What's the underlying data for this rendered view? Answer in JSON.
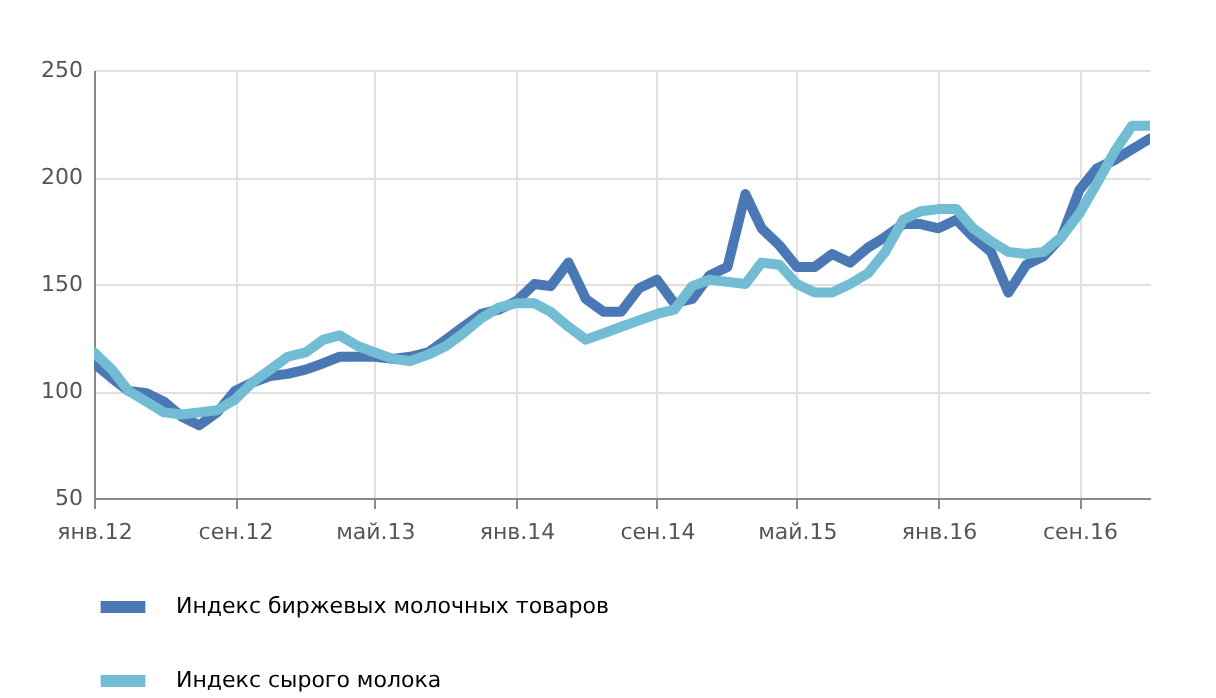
{
  "chart_data": {
    "type": "line",
    "x": [
      "2012-01",
      "2012-02",
      "2012-03",
      "2012-04",
      "2012-05",
      "2012-06",
      "2012-07",
      "2012-08",
      "2012-09",
      "2012-10",
      "2012-11",
      "2012-12",
      "2013-01",
      "2013-02",
      "2013-03",
      "2013-04",
      "2013-05",
      "2013-06",
      "2013-07",
      "2013-08",
      "2013-09",
      "2013-10",
      "2013-11",
      "2013-12",
      "2014-01",
      "2014-02",
      "2014-03",
      "2014-04",
      "2014-05",
      "2014-06",
      "2014-07",
      "2014-08",
      "2014-09",
      "2014-10",
      "2014-11",
      "2014-12",
      "2015-01",
      "2015-02",
      "2015-03",
      "2015-04",
      "2015-05",
      "2015-06",
      "2015-07",
      "2015-08",
      "2015-09",
      "2015-10",
      "2015-11",
      "2015-12",
      "2016-01",
      "2016-02",
      "2016-03",
      "2016-04",
      "2016-05",
      "2016-06",
      "2016-07",
      "2016-08",
      "2016-09",
      "2016-10",
      "2016-11",
      "2016-12",
      "2017-01"
    ],
    "series": [
      {
        "name": "Индекс биржевых молочных товаров",
        "color": "#4a78b5",
        "values": [
          113,
          106,
          100,
          99,
          95,
          88,
          84,
          90,
          100,
          104,
          107,
          108,
          110,
          113,
          116,
          116,
          116,
          115,
          116,
          118,
          124,
          130,
          136,
          138,
          142,
          150,
          149,
          160,
          143,
          137,
          137,
          148,
          152,
          141,
          143,
          154,
          158,
          192,
          176,
          168,
          158,
          158,
          164,
          160,
          167,
          172,
          178,
          178,
          176,
          180,
          172,
          165,
          146,
          159,
          163,
          172,
          194,
          204,
          208,
          213,
          218
        ]
      },
      {
        "name": "Индекс сырого молока",
        "color": "#72bcd4",
        "values": [
          118,
          110,
          100,
          95,
          90,
          89,
          90,
          91,
          96,
          104,
          110,
          116,
          118,
          124,
          126,
          121,
          118,
          115,
          114,
          117,
          121,
          127,
          134,
          139,
          141,
          141,
          137,
          130,
          124,
          127,
          130,
          133,
          136,
          138,
          149,
          152,
          151,
          150,
          160,
          159,
          150,
          146,
          146,
          150,
          155,
          165,
          180,
          184,
          185,
          185,
          176,
          170,
          165,
          164,
          165,
          172,
          183,
          197,
          212,
          224,
          224
        ]
      }
    ],
    "xlim": [
      "2012-01",
      "2017-01"
    ],
    "xticks": [
      {
        "value": "2012-01",
        "label": "янв.12"
      },
      {
        "value": "2012-09",
        "label": "сен.12"
      },
      {
        "value": "2013-05",
        "label": "май.13"
      },
      {
        "value": "2014-01",
        "label": "янв.14"
      },
      {
        "value": "2014-09",
        "label": "сен.14"
      },
      {
        "value": "2015-05",
        "label": "май.15"
      },
      {
        "value": "2016-01",
        "label": "янв.16"
      },
      {
        "value": "2016-09",
        "label": "сен.16"
      }
    ],
    "ylim": [
      50,
      250
    ],
    "yticks": [
      50,
      100,
      150,
      200,
      250
    ],
    "grid": true,
    "legend": "bottom left",
    "marker": "none",
    "line_style": "solid"
  }
}
